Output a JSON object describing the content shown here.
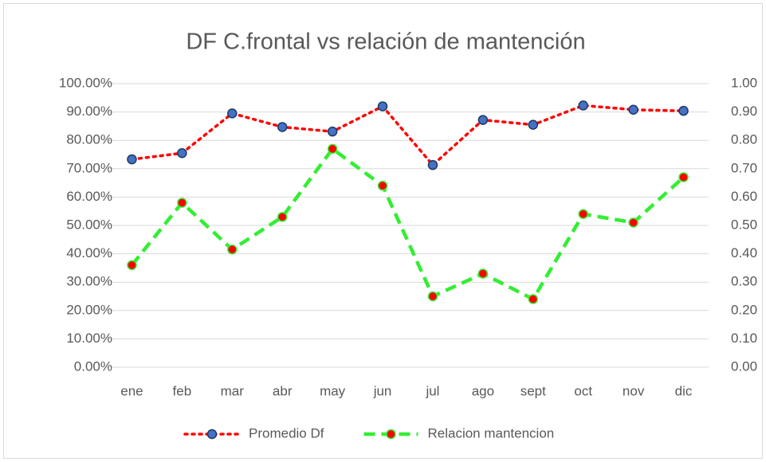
{
  "chart_data": {
    "type": "line",
    "title": "DF C.frontal vs relación de mantención",
    "categories": [
      "ene",
      "feb",
      "mar",
      "abr",
      "may",
      "jun",
      "jul",
      "ago",
      "sept",
      "oct",
      "nov",
      "dic"
    ],
    "series": [
      {
        "name": "Promedio Df",
        "color": "#ff0000",
        "marker_color": "#4472c4",
        "marker_edge": "#1f3864",
        "dash": "dotted",
        "values": [
          73.3,
          75.5,
          89.5,
          84.7,
          83.1,
          92.0,
          71.3,
          87.2,
          85.5,
          92.3,
          90.8,
          90.4
        ]
      },
      {
        "name": "Relacion mantencion",
        "color": "#33ee33",
        "marker_color": "#ff0000",
        "marker_edge": "#33ee33",
        "dash": "dashed",
        "axis": "y2",
        "values": [
          0.36,
          0.58,
          0.415,
          0.53,
          0.77,
          0.64,
          0.25,
          0.33,
          0.24,
          0.54,
          0.51,
          0.67
        ]
      }
    ],
    "ylim": [
      0,
      100
    ],
    "yticks": [
      {
        "value": 0,
        "label": "0.00%"
      },
      {
        "value": 10,
        "label": "10.00%"
      },
      {
        "value": 20,
        "label": "20.00%"
      },
      {
        "value": 30,
        "label": "30.00%"
      },
      {
        "value": 40,
        "label": "40.00%"
      },
      {
        "value": 50,
        "label": "50.00%"
      },
      {
        "value": 60,
        "label": "60.00%"
      },
      {
        "value": 70,
        "label": "70.00%"
      },
      {
        "value": 80,
        "label": "80.00%"
      },
      {
        "value": 90,
        "label": "90.00%"
      },
      {
        "value": 100,
        "label": "100.00%"
      }
    ],
    "y2lim": [
      0,
      1
    ],
    "y2ticks": [
      {
        "value": 0,
        "label": "0.00"
      },
      {
        "value": 0.1,
        "label": "0.10"
      },
      {
        "value": 0.2,
        "label": "0.20"
      },
      {
        "value": 0.3,
        "label": "0.30"
      },
      {
        "value": 0.4,
        "label": "0.40"
      },
      {
        "value": 0.5,
        "label": "0.50"
      },
      {
        "value": 0.6,
        "label": "0.60"
      },
      {
        "value": 0.7,
        "label": "0.70"
      },
      {
        "value": 0.8,
        "label": "0.80"
      },
      {
        "value": 0.9,
        "label": "0.90"
      },
      {
        "value": 1,
        "label": "1.00"
      }
    ],
    "grid": true,
    "legend": "bottom"
  }
}
